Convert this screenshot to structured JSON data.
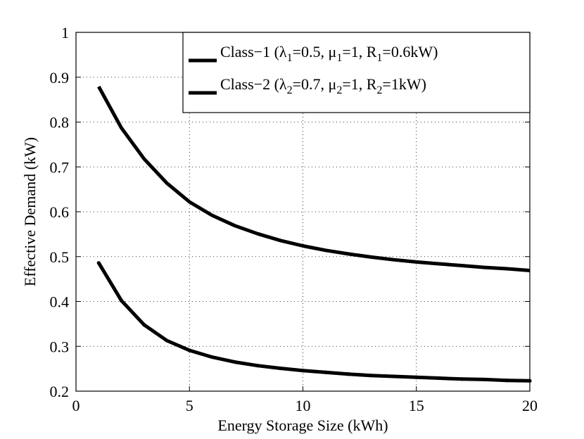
{
  "chart_data": {
    "type": "line",
    "title": "",
    "xlabel": "Energy Storage Size (kWh)",
    "ylabel": "Effective Demand (kW)",
    "xlim": [
      0,
      20
    ],
    "ylim": [
      0.2,
      1.0
    ],
    "grid": true,
    "legend_position": "top-right",
    "x_ticks": [
      "0",
      "5",
      "10",
      "15",
      "20"
    ],
    "y_ticks": [
      "0.2",
      "0.3",
      "0.4",
      "0.5",
      "0.6",
      "0.7",
      "0.8",
      "0.9",
      "1"
    ],
    "x": [
      1,
      2,
      3,
      4,
      5,
      6,
      7,
      8,
      9,
      10,
      11,
      12,
      13,
      14,
      15,
      16,
      17,
      18,
      19,
      20
    ],
    "series": [
      {
        "name": "Class-1",
        "legend": {
          "prefix": "Class−1 (",
          "lambda": "λ",
          "lambda_sub": "1",
          "lambda_val": "=0.5, ",
          "mu": "μ",
          "mu_sub": "1",
          "mu_val": "=1, R",
          "r_sub": "1",
          "r_val": "=0.6kW)"
        },
        "marker": "dot",
        "color": "#000000",
        "values": [
          0.486,
          0.402,
          0.348,
          0.313,
          0.291,
          0.276,
          0.265,
          0.257,
          0.251,
          0.246,
          0.242,
          0.238,
          0.235,
          0.233,
          0.231,
          0.229,
          0.227,
          0.226,
          0.224,
          0.223
        ]
      },
      {
        "name": "Class-2",
        "legend": {
          "prefix": "Class−2 (",
          "lambda": "λ",
          "lambda_sub": "2",
          "lambda_val": "=0.7, ",
          "mu": "μ",
          "mu_sub": "2",
          "mu_val": "=1, R",
          "r_sub": "2",
          "r_val": "=1kW)"
        },
        "marker": "none",
        "color": "#000000",
        "values": [
          0.879,
          0.787,
          0.718,
          0.664,
          0.622,
          0.592,
          0.569,
          0.551,
          0.536,
          0.524,
          0.514,
          0.506,
          0.499,
          0.493,
          0.488,
          0.484,
          0.48,
          0.476,
          0.473,
          0.469
        ]
      }
    ]
  }
}
